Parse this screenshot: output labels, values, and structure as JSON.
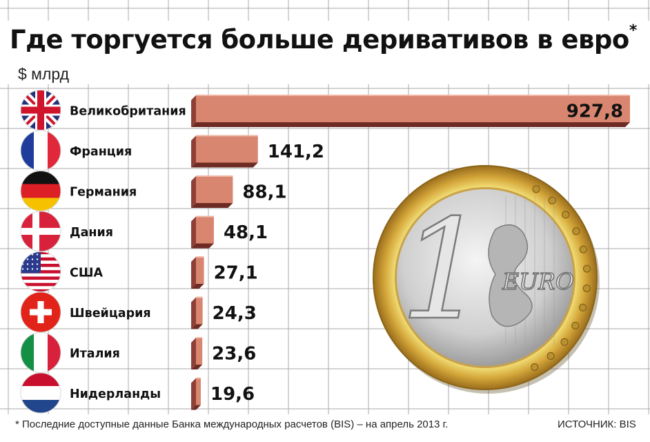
{
  "title": "Где торгуется больше деривативов в евро",
  "title_mark": "*",
  "unit": "$ млрд",
  "footnote": "* Последние доступные данные Банка международных расчетов (BIS) – на апрель 2013 г.",
  "source": "ИСТОЧНИК: BIS",
  "colors": {
    "bar_front": "#d98670",
    "bar_top": "#c77a66",
    "bar_side": "#8f3f36",
    "bar_edge": "#6d2b24"
  },
  "chart_data": {
    "type": "bar",
    "orientation": "horizontal",
    "categories": [
      "Великобритания",
      "Франция",
      "Германия",
      "Дания",
      "США",
      "Швейцария",
      "Италия",
      "Нидерланды"
    ],
    "flags": [
      "uk-flag-icon",
      "france-flag-icon",
      "germany-flag-icon",
      "denmark-flag-icon",
      "usa-flag-icon",
      "switzerland-flag-icon",
      "italy-flag-icon",
      "netherlands-flag-icon"
    ],
    "values": [
      927.8,
      141.2,
      88.1,
      48.1,
      27.1,
      24.3,
      23.6,
      19.6
    ],
    "value_labels": [
      "927,8",
      "141,2",
      "88,1",
      "48,1",
      "27,1",
      "24,3",
      "23,6",
      "19,6"
    ],
    "coin_text": "EURO",
    "coin_value": "1"
  }
}
